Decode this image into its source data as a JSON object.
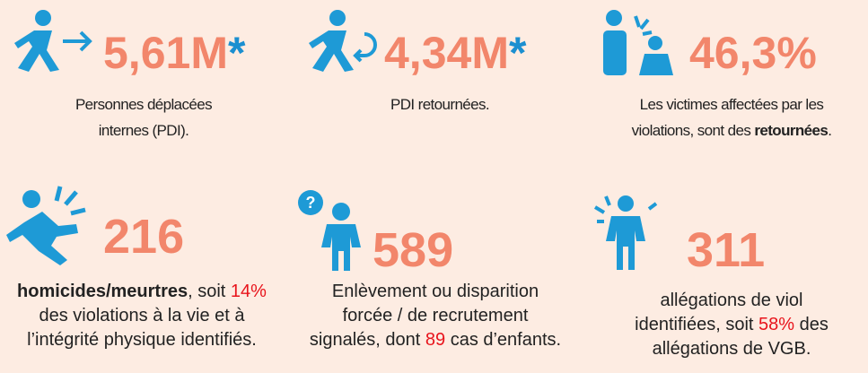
{
  "stats": [
    {
      "value": "5,61M",
      "suffix": "*",
      "lines": [
        [
          {
            "text": "Personnes déplacées"
          }
        ],
        [
          {
            "text": "internes (PDI)."
          }
        ]
      ]
    },
    {
      "value": "4,34M",
      "suffix": "*",
      "lines": [
        [
          {
            "text": "PDI retournées."
          }
        ]
      ]
    },
    {
      "value": "46,3%",
      "lines": [
        [
          {
            "text": "Les victimes affectées par les"
          }
        ],
        [
          {
            "text": "violations, sont des "
          },
          {
            "text": "retournées",
            "emphasis": "bold"
          },
          {
            "text": "."
          }
        ]
      ]
    },
    {
      "value": "216",
      "lines": [
        [
          {
            "text": "homicides/meurtres",
            "emphasis": "bold"
          },
          {
            "text": ", soit "
          },
          {
            "text": "14%",
            "emphasis": "highlight"
          }
        ],
        [
          {
            "text": "des violations à la vie et à"
          }
        ],
        [
          {
            "text": "l’intégrité physique identifiés."
          }
        ]
      ]
    },
    {
      "value": "589",
      "lines": [
        [
          {
            "text": "Enlèvement ou disparition"
          }
        ],
        [
          {
            "text": "forcée / de recrutement"
          }
        ],
        [
          {
            "text": "signalés, dont "
          },
          {
            "text": "89",
            "emphasis": "highlight"
          },
          {
            "text": " cas d’enfants."
          }
        ]
      ]
    },
    {
      "value": "311",
      "lines": [
        [
          {
            "text": "allégations de viol"
          }
        ],
        [
          {
            "text": "identifiées, soit "
          },
          {
            "text": "58%",
            "emphasis": "highlight"
          },
          {
            "text": " des"
          }
        ],
        [
          {
            "text": "allégations de VGB."
          }
        ]
      ]
    }
  ]
}
